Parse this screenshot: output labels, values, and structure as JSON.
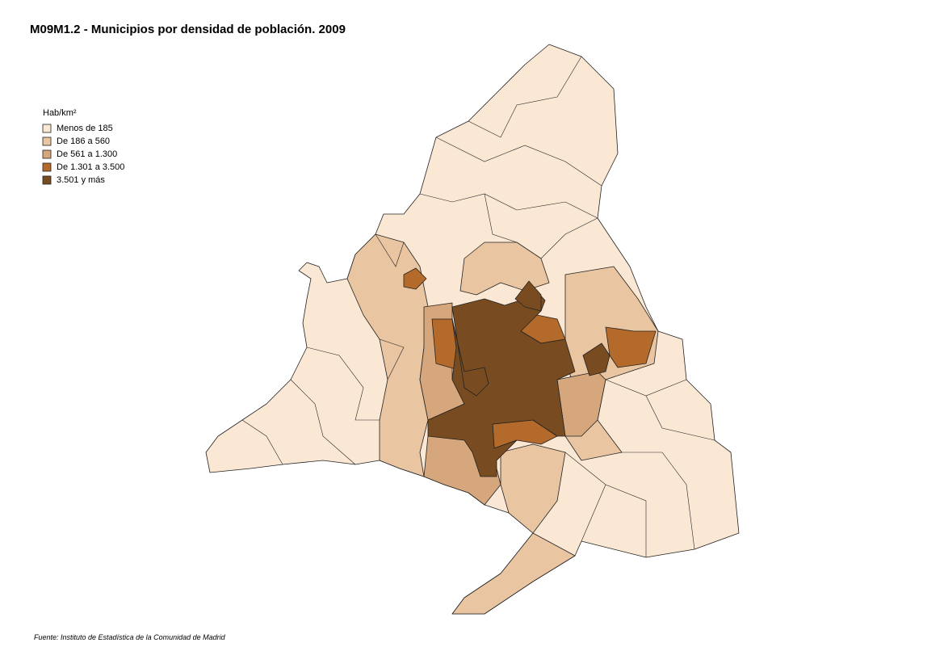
{
  "title": "M09M1.2 - Municipios por densidad de población. 2009",
  "legend": {
    "title": "Hab/km²",
    "items": [
      {
        "label": "Menos de 185",
        "color": "#fbe8d4"
      },
      {
        "label": "De 186 a 560",
        "color": "#e9c6a1"
      },
      {
        "label": "De 561 a 1.300",
        "color": "#d6a67c"
      },
      {
        "label": "De 1.301 a 3.500",
        "color": "#b46a2a"
      },
      {
        "label": "3.501 y más",
        "color": "#784c20"
      }
    ]
  },
  "source": "Fuente: Instituto de Estadística de la Comunidad de Madrid"
}
